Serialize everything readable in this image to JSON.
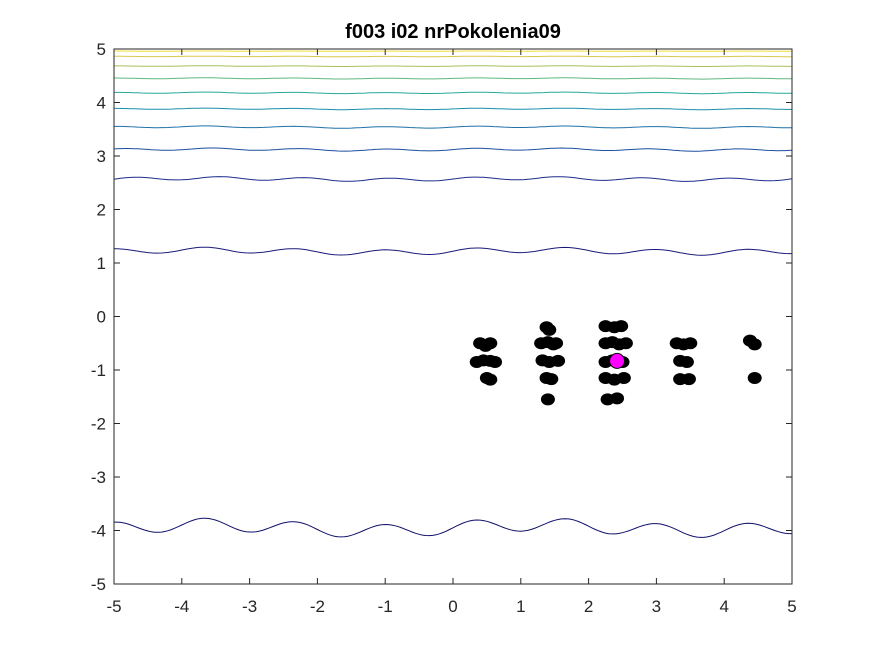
{
  "chart_data": {
    "type": "scatter",
    "title": "f003 i02 nrPokolenia09",
    "xlabel": "",
    "ylabel": "",
    "xlim": [
      -5,
      5
    ],
    "ylim": [
      -5,
      5
    ],
    "xticks": [
      "-5",
      "-4",
      "-3",
      "-2",
      "-1",
      "0",
      "1",
      "2",
      "3",
      "4",
      "5"
    ],
    "yticks": [
      "-5",
      "-4",
      "-3",
      "-2",
      "-1",
      "0",
      "1",
      "2",
      "3",
      "4",
      "5"
    ],
    "grid": false,
    "contours": [
      {
        "level": 1,
        "color": "#1a1a7a",
        "lines": [
          {
            "y": 1.22,
            "amp": 0.05,
            "freq": 3.0
          }
        ]
      },
      {
        "level": 2,
        "color": "#1c2c8c",
        "lines": [
          {
            "y": 2.57,
            "amp": 0.03,
            "freq": 3.2
          }
        ]
      },
      {
        "level": 3,
        "color": "#1c4e9e",
        "lines": [
          {
            "y": 3.12,
            "amp": 0.02,
            "freq": 3.1
          }
        ]
      },
      {
        "level": 4,
        "color": "#1f70a8",
        "lines": [
          {
            "y": 3.54,
            "amp": 0.015,
            "freq": 3.0
          }
        ]
      },
      {
        "level": 5,
        "color": "#1a8fa8",
        "lines": [
          {
            "y": 3.88,
            "amp": 0.01,
            "freq": 3.0
          }
        ]
      },
      {
        "level": 6,
        "color": "#25a89a",
        "lines": [
          {
            "y": 4.18,
            "amp": 0.01,
            "freq": 3.0
          }
        ]
      },
      {
        "level": 7,
        "color": "#60b880",
        "lines": [
          {
            "y": 4.45,
            "amp": 0.008,
            "freq": 3.0
          }
        ]
      },
      {
        "level": 8,
        "color": "#a8c058",
        "lines": [
          {
            "y": 4.68,
            "amp": 0.005,
            "freq": 3.0
          }
        ]
      },
      {
        "level": 9,
        "color": "#dcc84a",
        "lines": [
          {
            "y": 4.86,
            "amp": 0.004,
            "freq": 3.0
          }
        ]
      },
      {
        "level": 10,
        "color": "#f2dc3a",
        "lines": [
          {
            "y": 4.96,
            "amp": 0.002,
            "freq": 3.0
          }
        ]
      },
      {
        "level": 0,
        "color": "#10106a",
        "lines": [
          {
            "y": -3.95,
            "amp": 0.12,
            "freq": 3.0
          }
        ]
      }
    ],
    "population": {
      "color": "#000000",
      "points": [
        [
          0.4,
          -0.5
        ],
        [
          0.48,
          -0.55
        ],
        [
          0.55,
          -0.5
        ],
        [
          0.35,
          -0.85
        ],
        [
          0.45,
          -0.82
        ],
        [
          0.55,
          -0.83
        ],
        [
          0.62,
          -0.85
        ],
        [
          0.5,
          -1.15
        ],
        [
          0.55,
          -1.18
        ],
        [
          1.38,
          -0.2
        ],
        [
          1.42,
          -0.25
        ],
        [
          1.3,
          -0.5
        ],
        [
          1.4,
          -0.48
        ],
        [
          1.48,
          -0.52
        ],
        [
          1.52,
          -0.5
        ],
        [
          1.32,
          -0.82
        ],
        [
          1.42,
          -0.85
        ],
        [
          1.55,
          -0.83
        ],
        [
          1.38,
          -1.15
        ],
        [
          1.45,
          -1.17
        ],
        [
          1.4,
          -1.55
        ],
        [
          2.25,
          -0.18
        ],
        [
          2.38,
          -0.2
        ],
        [
          2.48,
          -0.18
        ],
        [
          2.25,
          -0.5
        ],
        [
          2.35,
          -0.48
        ],
        [
          2.45,
          -0.52
        ],
        [
          2.55,
          -0.5
        ],
        [
          2.25,
          -0.85
        ],
        [
          2.35,
          -0.82
        ],
        [
          2.5,
          -0.85
        ],
        [
          2.25,
          -1.15
        ],
        [
          2.38,
          -1.18
        ],
        [
          2.52,
          -1.15
        ],
        [
          2.28,
          -1.55
        ],
        [
          2.42,
          -1.53
        ],
        [
          3.3,
          -0.5
        ],
        [
          3.4,
          -0.52
        ],
        [
          3.5,
          -0.5
        ],
        [
          3.35,
          -0.83
        ],
        [
          3.45,
          -0.85
        ],
        [
          3.35,
          -1.17
        ],
        [
          3.48,
          -1.17
        ],
        [
          4.38,
          -0.45
        ],
        [
          4.45,
          -0.52
        ],
        [
          4.45,
          -1.15
        ]
      ]
    },
    "best": {
      "x": 2.42,
      "y": -0.83,
      "color": "#ff00ff"
    }
  }
}
